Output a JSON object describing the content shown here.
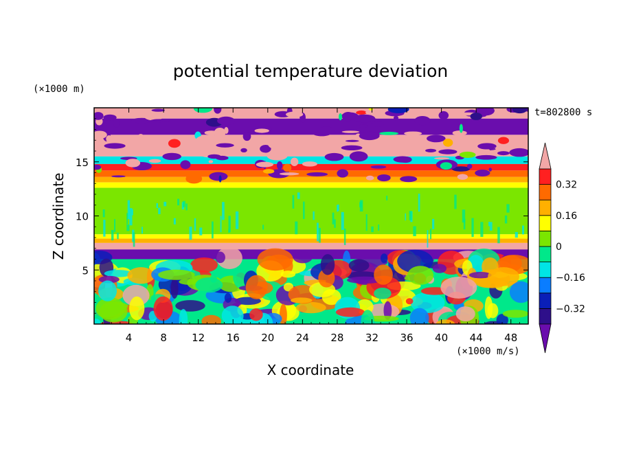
{
  "chart_data": {
    "type": "heatmap",
    "title": "potential temperature deviation",
    "xlabel": "X coordinate",
    "ylabel": "Z coordinate",
    "x_unit": "(×1000 m/s)",
    "y_unit": "(×1000 m)",
    "time_label": "t=802800 s",
    "xlim": [
      0,
      50
    ],
    "ylim": [
      0,
      20
    ],
    "x_ticks": [
      4,
      8,
      12,
      16,
      20,
      24,
      28,
      32,
      36,
      40,
      44,
      48
    ],
    "x_tick_labels": [
      "4",
      "8",
      "12",
      "16",
      "20",
      "24",
      "28",
      "32",
      "36",
      "40",
      "44",
      "48"
    ],
    "y_ticks": [
      5,
      10,
      15
    ],
    "y_tick_labels": [
      "5",
      "10",
      "15"
    ],
    "colorbar": {
      "levels": [
        -0.4,
        -0.32,
        -0.24,
        -0.16,
        -0.08,
        0,
        0.08,
        0.16,
        0.24,
        0.32,
        0.4
      ],
      "tick_values": [
        -0.32,
        -0.16,
        0,
        0.16,
        0.32
      ],
      "tick_labels": [
        "−0.32",
        "−0.16",
        "0",
        "0.16",
        "0.32"
      ],
      "colors": [
        "#6a0dad",
        "#2e0f8a",
        "#0a1fb8",
        "#0a7dff",
        "#00e5e5",
        "#00e88a",
        "#7be600",
        "#ffff00",
        "#ffb000",
        "#ff6a00",
        "#ff2020",
        "#f2a6a6"
      ],
      "extend": "both"
    },
    "layers": [
      {
        "z": [
          19,
          20
        ],
        "value": 0.45
      },
      {
        "z": [
          17.5,
          19
        ],
        "value": -0.45
      },
      {
        "z": [
          15.5,
          17.5
        ],
        "value": 0.45
      },
      {
        "z": [
          14.8,
          15.5
        ],
        "value": -0.1
      },
      {
        "z": [
          14.2,
          14.8
        ],
        "value": 0.34
      },
      {
        "z": [
          13.6,
          14.2
        ],
        "value": 0.27
      },
      {
        "z": [
          13.1,
          13.6
        ],
        "value": 0.2
      },
      {
        "z": [
          12.6,
          13.1
        ],
        "value": 0.12
      },
      {
        "z": [
          8.3,
          12.6
        ],
        "value": 0.04
      },
      {
        "z": [
          7.9,
          8.3
        ],
        "value": 0.12
      },
      {
        "z": [
          7.5,
          7.9
        ],
        "value": 0.2
      },
      {
        "z": [
          6.9,
          7.5
        ],
        "value": 0.45
      },
      {
        "z": [
          6,
          6.9
        ],
        "value": -0.45
      },
      {
        "z": [
          0,
          6
        ],
        "value": "turbulent mix"
      }
    ]
  }
}
